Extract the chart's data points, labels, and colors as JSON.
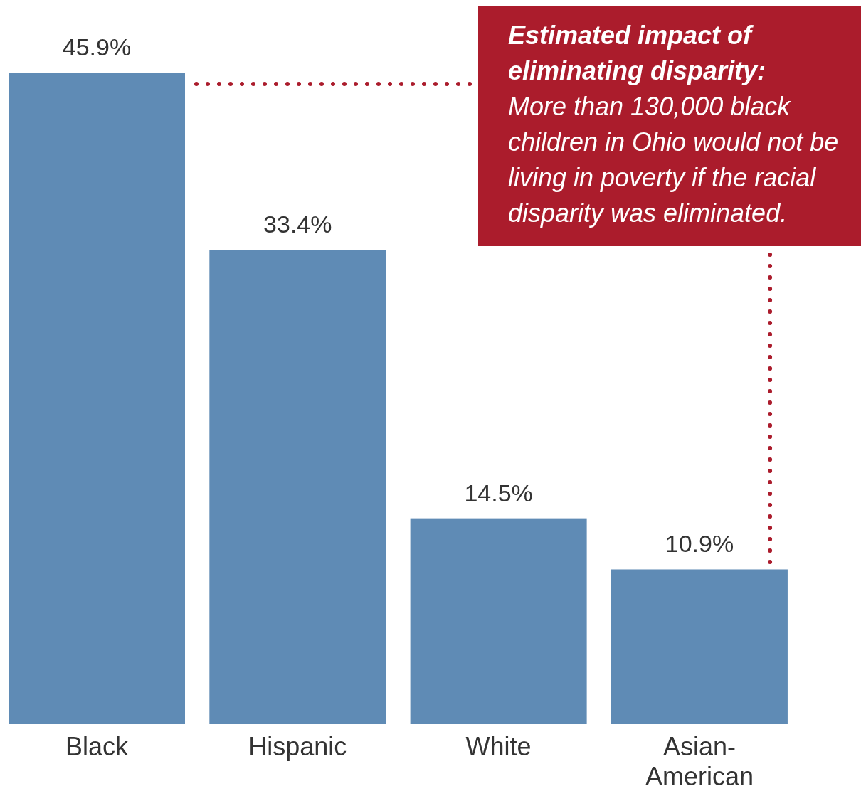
{
  "chart_data": {
    "type": "bar",
    "categories": [
      "Black",
      "Hispanic",
      "White",
      "Asian-American"
    ],
    "values": [
      45.9,
      33.4,
      14.5,
      10.9
    ],
    "color": "#5f8bb5",
    "value_labels": [
      "45.9%",
      "33.4%",
      "14.5%",
      "10.9%"
    ],
    "annotations": [
      "Estimated impact of eliminating disparity:",
      "More than 130,000 black children in Ohio would not be living in poverty if the racial disparity was eliminated."
    ]
  }
}
